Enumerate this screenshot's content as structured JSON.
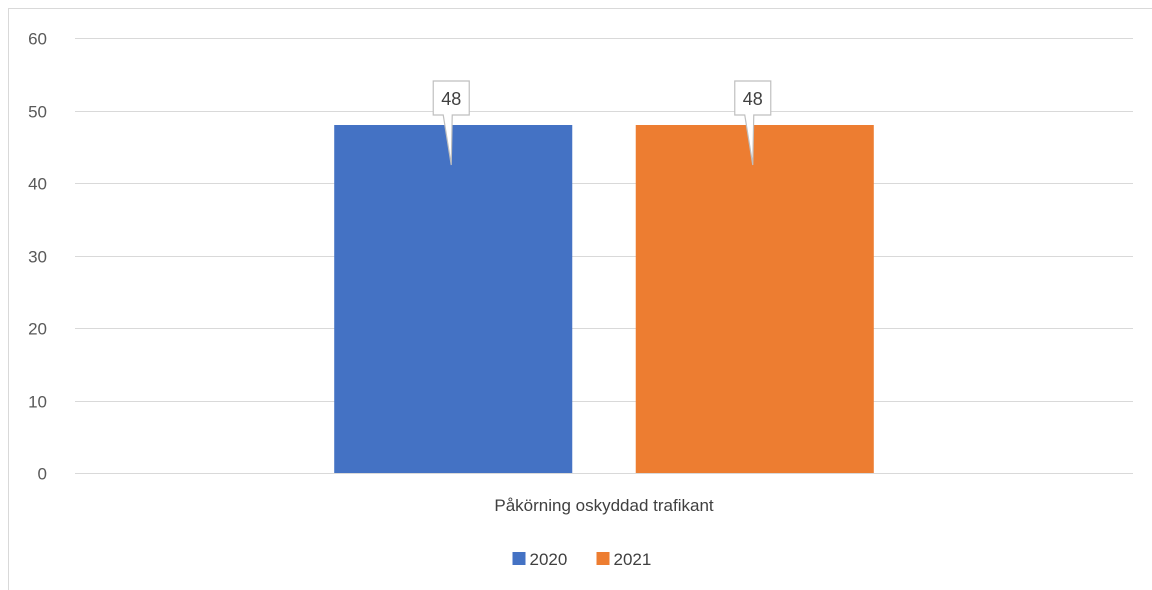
{
  "chart_data": {
    "type": "bar",
    "categories": [
      "Påkörning oskyddad trafikant"
    ],
    "series": [
      {
        "name": "2020",
        "values": [
          48
        ],
        "color": "#4472C4"
      },
      {
        "name": "2021",
        "values": [
          48
        ],
        "color": "#ED7D31"
      }
    ],
    "title": "",
    "xlabel": "",
    "ylabel": "",
    "ylim": [
      0,
      60
    ],
    "yticks": [
      0,
      10,
      20,
      30,
      40,
      50,
      60
    ],
    "grid": true,
    "legend_position": "bottom",
    "data_labels": true
  }
}
